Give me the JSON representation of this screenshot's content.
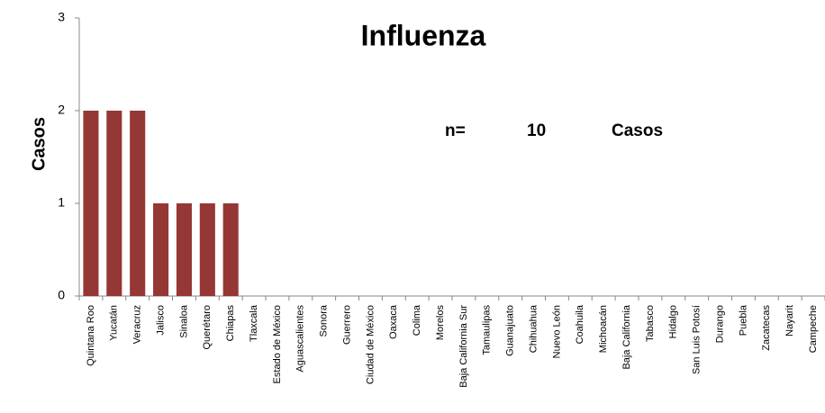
{
  "chart_data": {
    "type": "bar",
    "title": "Influenza",
    "y_label": "Casos",
    "annotation": {
      "label": "n=",
      "value": 10,
      "unit": "Casos"
    },
    "categories": [
      "Quintana Roo",
      "Yucatán",
      "Veracruz",
      "Jalisco",
      "Sinaloa",
      "Querétaro",
      "Chiapas",
      "Tlaxcala",
      "Estado de México",
      "Aguascalientes",
      "Sonora",
      "Guerrero",
      "Ciudad de México",
      "Oaxaca",
      "Colima",
      "Morelos",
      "Baja California Sur",
      "Tamaulipas",
      "Guanajuato",
      "Chihuahua",
      "Nuevo León",
      "Coahuila",
      "Michoacán",
      "Baja California",
      "Tabasco",
      "Hidalgo",
      "San Luis Potosí",
      "Durango",
      "Puebla",
      "Zacatecas",
      "Nayarit",
      "Campeche"
    ],
    "values": [
      2,
      2,
      2,
      1,
      1,
      1,
      1,
      0,
      0,
      0,
      0,
      0,
      0,
      0,
      0,
      0,
      0,
      0,
      0,
      0,
      0,
      0,
      0,
      0,
      0,
      0,
      0,
      0,
      0,
      0,
      0,
      0
    ],
    "color": "#953735",
    "ylim": [
      0,
      3
    ],
    "yticks": [
      0,
      1,
      2,
      3
    ],
    "grid": false
  }
}
